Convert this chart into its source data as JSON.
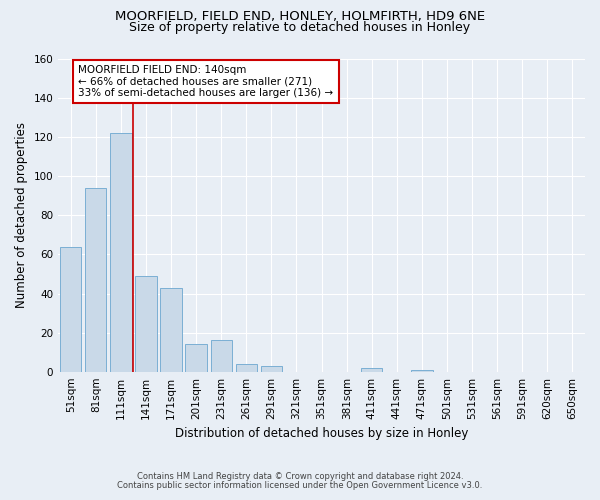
{
  "title1": "MOORFIELD, FIELD END, HONLEY, HOLMFIRTH, HD9 6NE",
  "title2": "Size of property relative to detached houses in Honley",
  "xlabel": "Distribution of detached houses by size in Honley",
  "ylabel": "Number of detached properties",
  "bar_labels": [
    "51sqm",
    "81sqm",
    "111sqm",
    "141sqm",
    "171sqm",
    "201sqm",
    "231sqm",
    "261sqm",
    "291sqm",
    "321sqm",
    "351sqm",
    "381sqm",
    "411sqm",
    "441sqm",
    "471sqm",
    "501sqm",
    "531sqm",
    "561sqm",
    "591sqm",
    "620sqm",
    "650sqm"
  ],
  "bar_values": [
    64,
    94,
    122,
    49,
    43,
    14,
    16,
    4,
    3,
    0,
    0,
    0,
    2,
    0,
    1,
    0,
    0,
    0,
    0,
    0,
    0
  ],
  "bar_color": "#c9d9e8",
  "bar_edge_color": "#7bafd4",
  "vline_color": "#cc0000",
  "annotation_box_text": "MOORFIELD FIELD END: 140sqm\n← 66% of detached houses are smaller (271)\n33% of semi-detached houses are larger (136) →",
  "annotation_box_color": "#cc0000",
  "annotation_box_fill": "#ffffff",
  "ylim": [
    0,
    160
  ],
  "yticks": [
    0,
    20,
    40,
    60,
    80,
    100,
    120,
    140,
    160
  ],
  "footer1": "Contains HM Land Registry data © Crown copyright and database right 2024.",
  "footer2": "Contains public sector information licensed under the Open Government Licence v3.0.",
  "bg_color": "#e8eef5",
  "plot_bg_color": "#e8eef5",
  "title_fontsize": 9.5,
  "subtitle_fontsize": 9,
  "tick_fontsize": 7.5,
  "label_fontsize": 8.5,
  "footer_fontsize": 6
}
